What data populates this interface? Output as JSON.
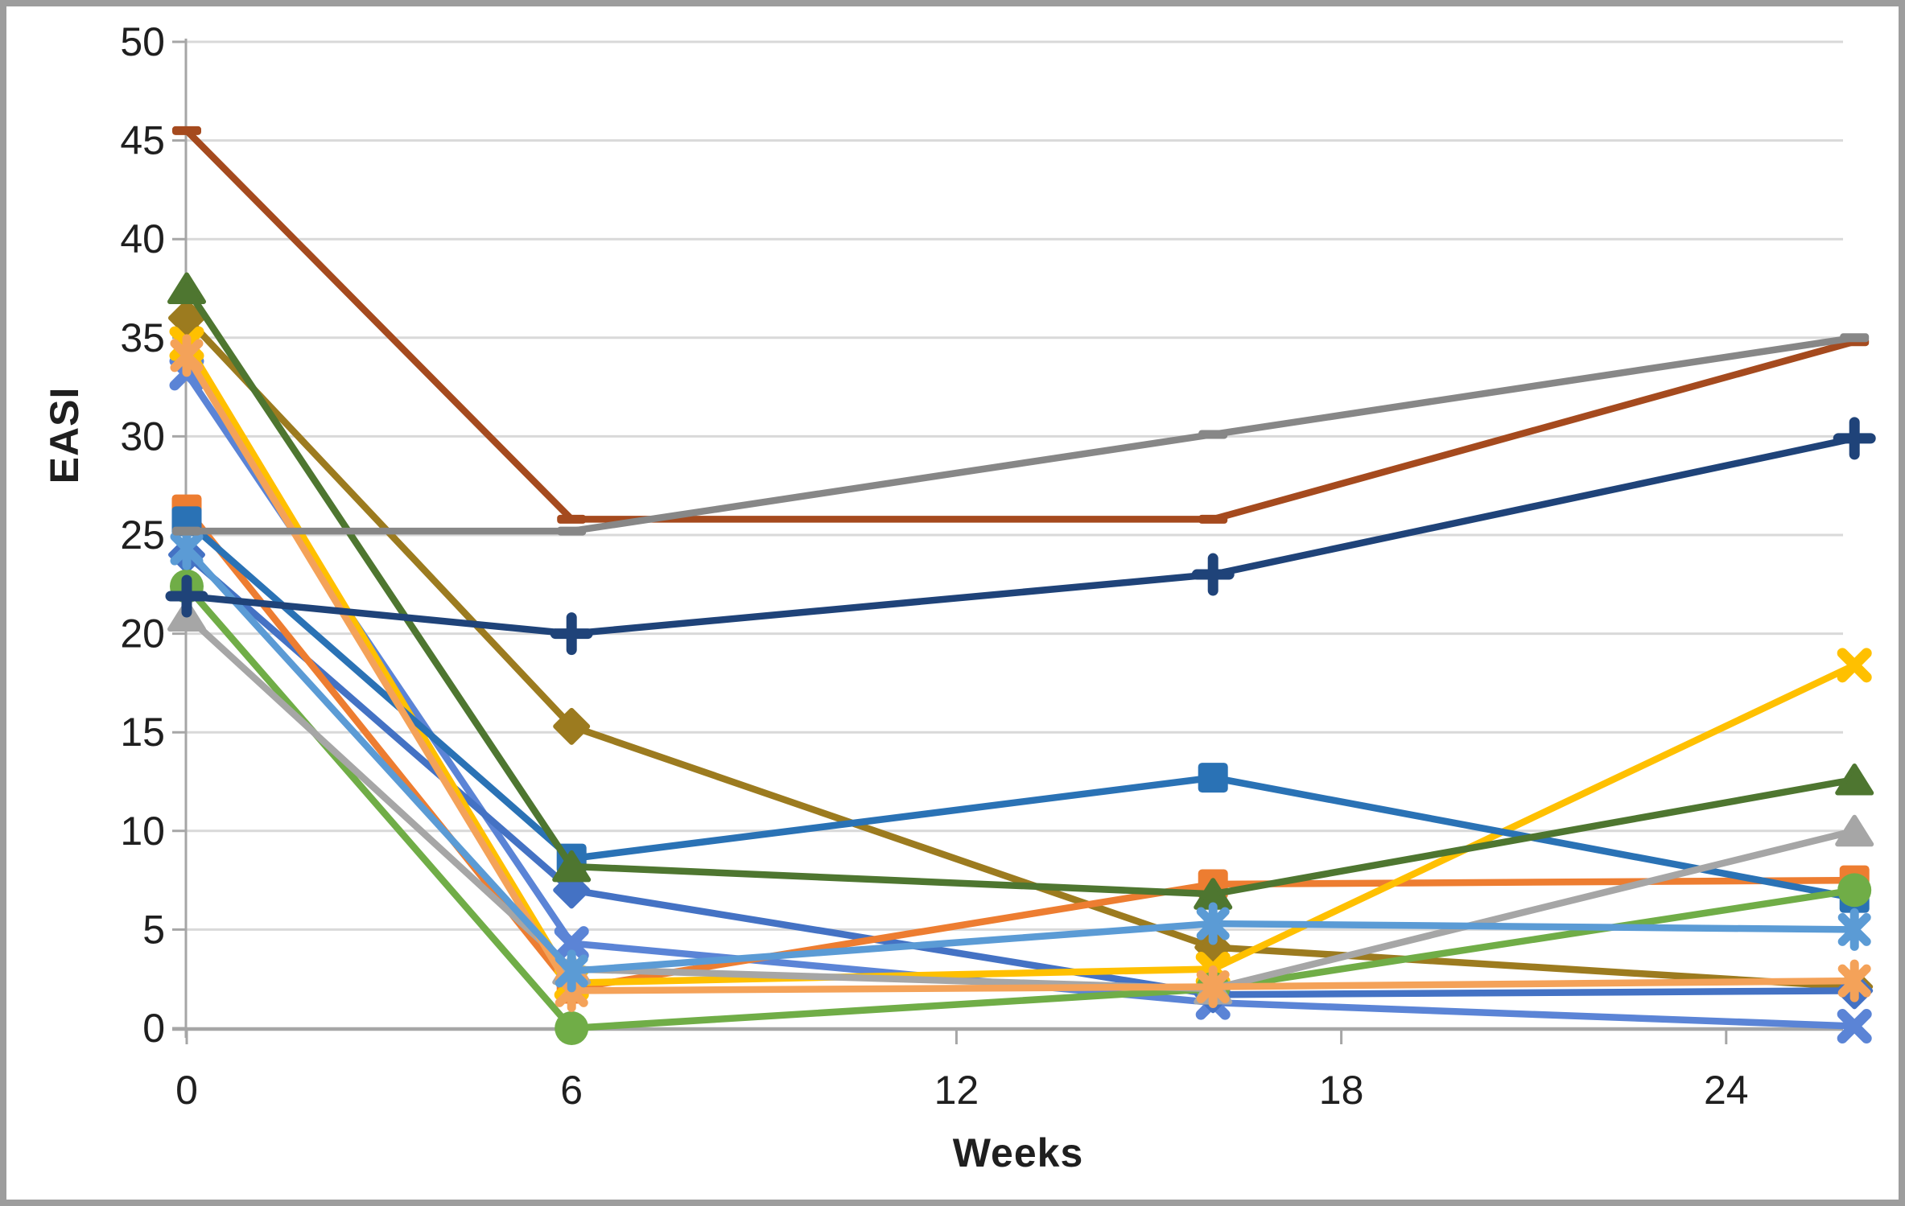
{
  "chart_data": {
    "type": "line",
    "title": "",
    "xlabel": "Weeks",
    "ylabel": "EASI",
    "x_ticks": [
      0,
      6,
      12,
      18,
      24
    ],
    "y_ticks": [
      0,
      5,
      10,
      15,
      20,
      25,
      30,
      35,
      40,
      45,
      50
    ],
    "xlim": [
      0,
      27
    ],
    "ylim": [
      0,
      50
    ],
    "grid": "horizontal-only",
    "legend_position": "none",
    "x": [
      0,
      6,
      16,
      26
    ],
    "series": [
      {
        "id": "S01",
        "color": "#A54A1E",
        "marker": "dash",
        "values": [
          45.5,
          25.8,
          25.8,
          34.8
        ]
      },
      {
        "id": "S02",
        "color": "#9C7B1F",
        "marker": "diamond",
        "values": [
          36.0,
          15.3,
          4.1,
          2.1
        ]
      },
      {
        "id": "S03",
        "color": "#5B84D6",
        "marker": "x",
        "values": [
          33.2,
          4.3,
          1.3,
          0.1
        ]
      },
      {
        "id": "S04",
        "color": "#4472C4",
        "marker": "diamond",
        "values": [
          24.0,
          7.0,
          1.7,
          1.9
        ]
      },
      {
        "id": "S05",
        "color": "#ED7D31",
        "marker": "square",
        "values": [
          26.3,
          2.0,
          7.3,
          7.5
        ]
      },
      {
        "id": "S06",
        "color": "#FFC000",
        "marker": "x",
        "values": [
          34.7,
          2.3,
          3.0,
          18.4
        ]
      },
      {
        "id": "S07",
        "color": "#2A72B5",
        "marker": "square",
        "values": [
          25.7,
          8.6,
          12.7,
          6.6
        ]
      },
      {
        "id": "S08",
        "color": "#4E7630",
        "marker": "triangle",
        "values": [
          37.5,
          8.2,
          6.8,
          12.6
        ]
      },
      {
        "id": "S09",
        "color": "#70AD47",
        "marker": "circle",
        "values": [
          22.4,
          0.0,
          2.0,
          7.0
        ]
      },
      {
        "id": "S10",
        "color": "#A6A6A6",
        "marker": "triangle",
        "values": [
          20.9,
          3.0,
          2.0,
          10.0
        ]
      },
      {
        "id": "S11",
        "color": "#F4A259",
        "marker": "asterisk",
        "values": [
          34.1,
          1.9,
          2.1,
          2.4
        ]
      },
      {
        "id": "S12",
        "color": "#5B9BD5",
        "marker": "asterisk",
        "values": [
          24.3,
          2.9,
          5.3,
          5.0
        ]
      },
      {
        "id": "S13",
        "color": "#1F4379",
        "marker": "plus",
        "values": [
          21.9,
          20.0,
          23.0,
          29.9
        ]
      },
      {
        "id": "S14",
        "color": "#878787",
        "marker": "dash",
        "values": [
          25.2,
          25.2,
          30.1,
          35.0
        ]
      }
    ]
  },
  "style": {
    "grid_color": "#D9D9D9",
    "axis_color": "#A6A6A6",
    "tick_label_color": "#1f1f1f",
    "frame_border_color": "#9d9d9d",
    "background": "#ffffff"
  }
}
